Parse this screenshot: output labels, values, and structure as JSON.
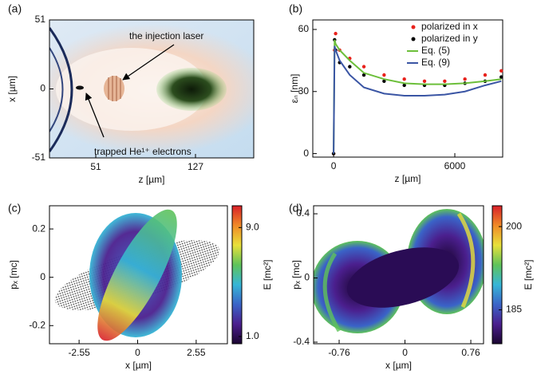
{
  "chart_data": [
    {
      "type": "image",
      "panel_label": "(a)",
      "xlabel": "z [µm]",
      "ylabel": "x [µm]",
      "xlim": [
        15.7,
        171.4
      ],
      "ylim": [
        -51,
        51
      ],
      "xticks": [
        51,
        127
      ],
      "yticks": [
        -51,
        0,
        51
      ],
      "annotations": [
        "the injection laser",
        "trapped He¹⁺ electrons"
      ]
    },
    {
      "type": "line",
      "panel_label": "(b)",
      "xlabel": "z [µm]",
      "ylabel": "εₙ [nm]",
      "xlim": [
        -1030,
        8370
      ],
      "ylim": [
        -1.7,
        64.6
      ],
      "xticks": [
        0,
        6000
      ],
      "yticks": [
        0,
        30,
        60
      ],
      "legend": "upper right",
      "x": [
        0,
        50,
        100,
        300,
        800,
        1500,
        2500,
        3500,
        4500,
        5500,
        6500,
        7500,
        8300
      ],
      "series": [
        {
          "name": "polarized in x",
          "color": "#e8221c",
          "style": "markers",
          "values": [
            0,
            50,
            58,
            50,
            46,
            42,
            38,
            36,
            35,
            35,
            36,
            38,
            40
          ]
        },
        {
          "name": "polarized in y",
          "color": "#000000",
          "style": "markers",
          "values": [
            0,
            55,
            50,
            44,
            42,
            38,
            35,
            33,
            33,
            33,
            34,
            35,
            37
          ]
        },
        {
          "name": "Eq. (5)",
          "color": "#6cbf3a",
          "style": "line",
          "values": [
            0,
            55,
            53,
            50,
            45,
            39,
            36,
            34,
            33.5,
            33.5,
            34,
            35,
            36
          ]
        },
        {
          "name": "Eq. (9)",
          "color": "#3a55a4",
          "style": "line",
          "values": [
            0,
            52,
            50,
            45,
            38,
            32,
            29,
            28,
            28,
            28.5,
            30,
            33,
            35
          ]
        }
      ]
    },
    {
      "type": "image",
      "panel_label": "(c)",
      "xlabel": "x [µm]",
      "ylabel": "pₓ [mc]",
      "xlim": [
        -3.84,
        3.91
      ],
      "ylim": [
        -0.275,
        0.296
      ],
      "xticks": [
        -2.55,
        0,
        2.55
      ],
      "yticks": [
        -0.2,
        0,
        0.2
      ],
      "colorbar": {
        "label": "E [mc²]",
        "lim": [
          0.47,
          10.6
        ],
        "ticks": [
          {
            "value": 1,
            "label": "1.0"
          },
          {
            "value": 9,
            "label": "9.0"
          }
        ],
        "colormap": [
          "#1a0530",
          "#4b1f8e",
          "#3a64c8",
          "#36b6d6",
          "#5fc35a",
          "#e8e03a",
          "#f08a28",
          "#d8202a"
        ]
      }
    },
    {
      "type": "image",
      "panel_label": "(d)",
      "xlabel": "x [µm]",
      "ylabel": "pₓ [mc]",
      "xlim": [
        -1.055,
        0.907
      ],
      "ylim": [
        -0.41,
        0.45
      ],
      "xticks": [
        -0.76,
        0,
        0.76
      ],
      "yticks": [
        -0.4,
        0,
        0.4
      ],
      "colorbar": {
        "label": "E [mc²]",
        "lim": [
          178.9,
          203.75
        ],
        "ticks": [
          185,
          200
        ],
        "colormap": [
          "#1a0530",
          "#4b1f8e",
          "#3a64c8",
          "#36b6d6",
          "#5fc35a",
          "#e8e03a",
          "#f08a28",
          "#d8202a"
        ]
      }
    }
  ]
}
